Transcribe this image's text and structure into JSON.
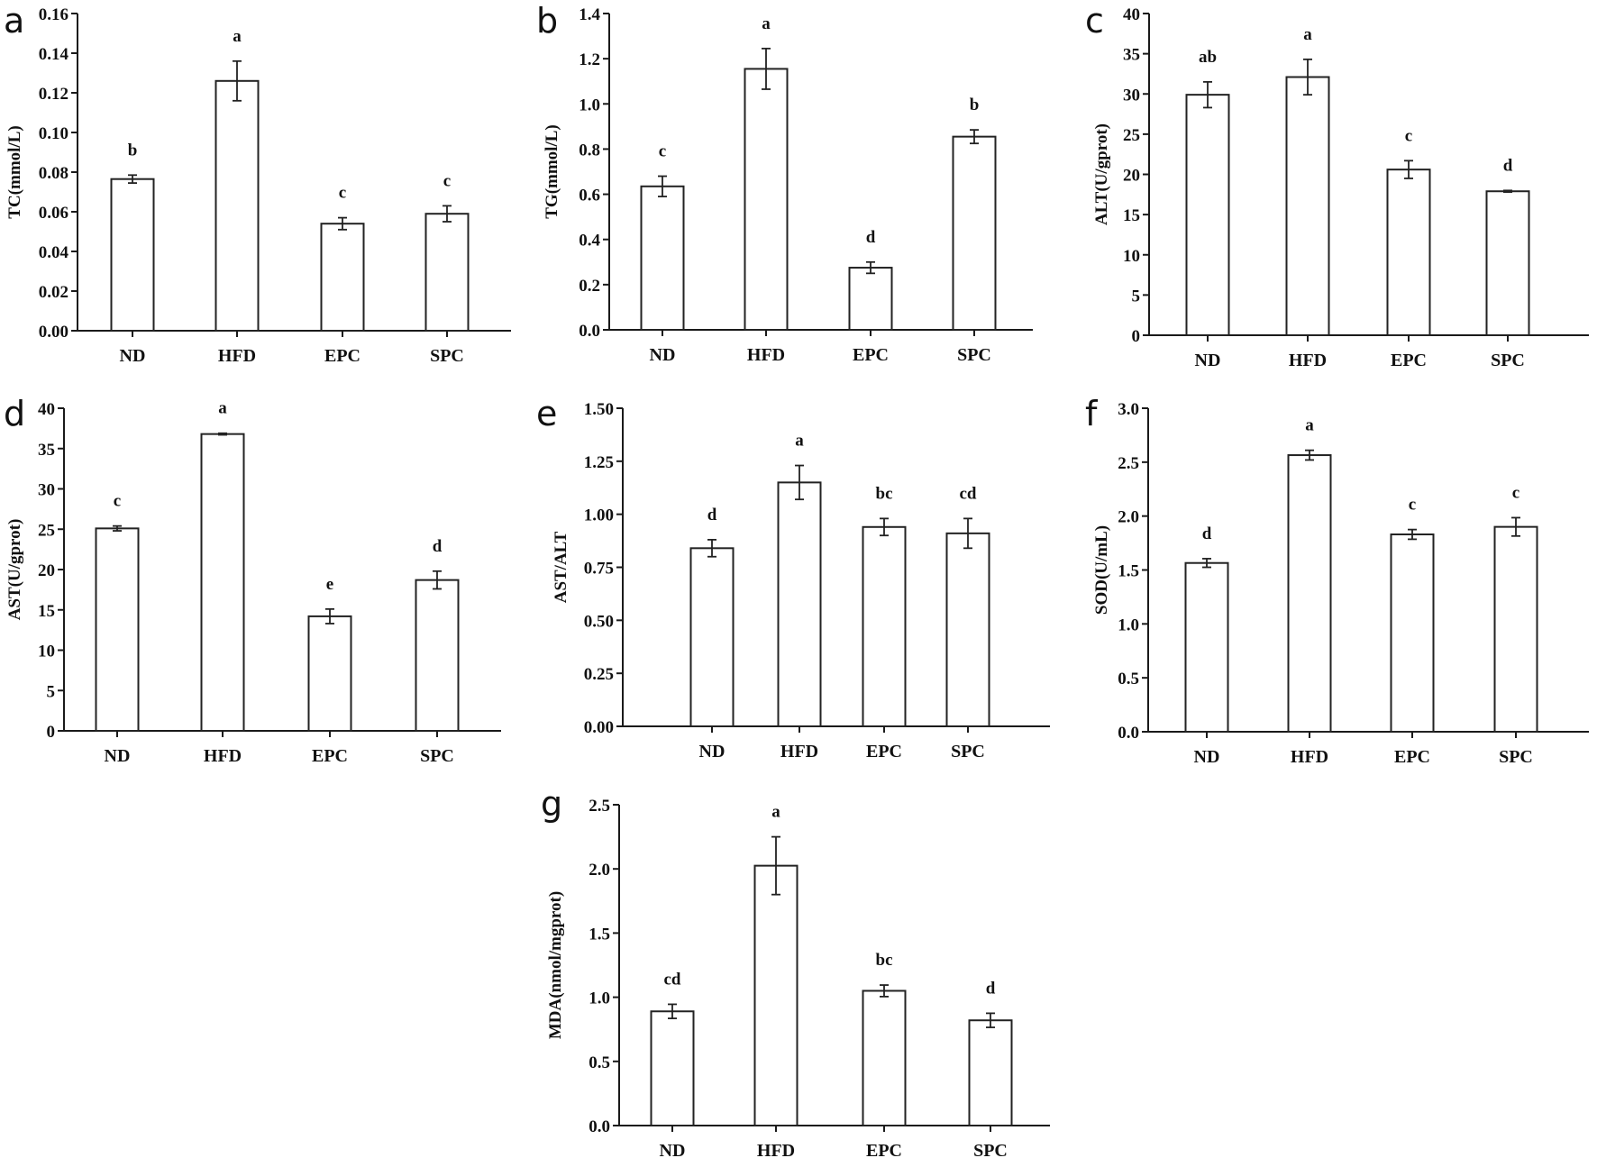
{
  "chart_data": [
    {
      "type": "bar",
      "panel": "a",
      "ylabel": "TC(mmol/L)",
      "categories": [
        "ND",
        "HFD",
        "EPC",
        "SPC"
      ],
      "values": [
        0.0765,
        0.126,
        0.054,
        0.059
      ],
      "errors": [
        0.002,
        0.01,
        0.003,
        0.004
      ],
      "significance": [
        "b",
        "a",
        "c",
        "c"
      ],
      "ylim": [
        0,
        0.16
      ],
      "yticks": [
        "0.00",
        "0.02",
        "0.04",
        "0.06",
        "0.08",
        "0.10",
        "0.12",
        "0.14",
        "0.16"
      ],
      "grid": false
    },
    {
      "type": "bar",
      "panel": "b",
      "ylabel": "TG(mmol/L)",
      "categories": [
        "ND",
        "HFD",
        "EPC",
        "SPC"
      ],
      "values": [
        0.635,
        1.155,
        0.275,
        0.855
      ],
      "errors": [
        0.045,
        0.09,
        0.025,
        0.03
      ],
      "significance": [
        "c",
        "a",
        "d",
        "b"
      ],
      "ylim": [
        0,
        1.4
      ],
      "yticks": [
        "0.0",
        "0.2",
        "0.4",
        "0.6",
        "0.8",
        "1.0",
        "1.2",
        "1.4"
      ],
      "grid": false
    },
    {
      "type": "bar",
      "panel": "c",
      "ylabel": "ALT(U/gprot)",
      "categories": [
        "ND",
        "HFD",
        "EPC",
        "SPC"
      ],
      "values": [
        29.9,
        32.1,
        20.6,
        17.9
      ],
      "errors": [
        1.6,
        2.2,
        1.1,
        0.1
      ],
      "significance": [
        "ab",
        "a",
        "c",
        "d"
      ],
      "ylim": [
        0,
        40
      ],
      "yticks": [
        "0",
        "5",
        "10",
        "15",
        "20",
        "25",
        "30",
        "35",
        "40"
      ],
      "grid": false
    },
    {
      "type": "bar",
      "panel": "d",
      "ylabel": "AST(U/gprot)",
      "categories": [
        "ND",
        "HFD",
        "EPC",
        "SPC"
      ],
      "values": [
        25.1,
        36.8,
        14.2,
        18.7
      ],
      "errors": [
        0.3,
        0.1,
        0.9,
        1.1
      ],
      "significance": [
        "c",
        "a",
        "e",
        "d"
      ],
      "ylim": [
        0,
        40
      ],
      "yticks": [
        "0",
        "5",
        "10",
        "15",
        "20",
        "25",
        "30",
        "35",
        "40"
      ],
      "grid": false
    },
    {
      "type": "bar",
      "panel": "e",
      "ylabel": "AST/ALT",
      "categories": [
        "ND",
        "HFD",
        "EPC",
        "SPC"
      ],
      "values": [
        0.84,
        1.15,
        0.94,
        0.91
      ],
      "errors": [
        0.04,
        0.08,
        0.04,
        0.07
      ],
      "significance": [
        "d",
        "a",
        "bc",
        "cd"
      ],
      "ylim": [
        0,
        1.5
      ],
      "yticks": [
        "0.00",
        "0.25",
        "0.50",
        "0.75",
        "1.00",
        "1.25",
        "1.50"
      ],
      "grid": false
    },
    {
      "type": "bar",
      "panel": "f",
      "ylabel": "SOD(U/mL)",
      "categories": [
        "ND",
        "HFD",
        "EPC",
        "SPC"
      ],
      "values": [
        1.565,
        2.565,
        1.83,
        1.9
      ],
      "errors": [
        0.04,
        0.045,
        0.045,
        0.085
      ],
      "significance": [
        "d",
        "a",
        "c",
        "c"
      ],
      "ylim": [
        0,
        3.0
      ],
      "yticks": [
        "0.0",
        "0.5",
        "1.0",
        "1.5",
        "2.0",
        "2.5",
        "3.0"
      ],
      "grid": false
    },
    {
      "type": "bar",
      "panel": "g",
      "ylabel": "MDA(nmol/mgprot)",
      "categories": [
        "ND",
        "HFD",
        "EPC",
        "SPC"
      ],
      "values": [
        0.89,
        2.025,
        1.05,
        0.82
      ],
      "errors": [
        0.055,
        0.225,
        0.045,
        0.055
      ],
      "significance": [
        "cd",
        "a",
        "bc",
        "d"
      ],
      "ylim": [
        0,
        2.5
      ],
      "yticks": [
        "0.0",
        "0.5",
        "1.0",
        "1.5",
        "2.0",
        "2.5"
      ],
      "grid": false
    }
  ],
  "colors": {
    "bar_fill": "#ffffff",
    "stroke": "#222222"
  }
}
